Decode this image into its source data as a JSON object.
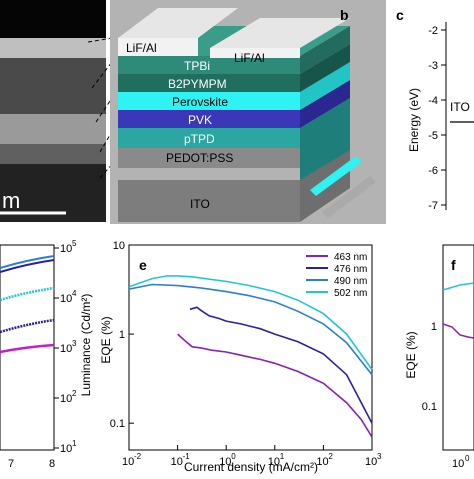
{
  "panel_a": {
    "scale_label": "m"
  },
  "panel_b": {
    "label": "b",
    "layers": [
      "LiF/Al",
      "LiF/Al",
      "TPBi",
      "B2PYMPM",
      "Perovskite",
      "PVK",
      "pTPD",
      "PEDOT:PSS",
      "ITO"
    ],
    "colors": {
      "tpbi": "#2e8b7a",
      "b2pympm": "#1f6e5e",
      "perovskite": "#2ff3f3",
      "pvk": "#3a37b8",
      "ptpd": "#2aa7a0",
      "pedot": "#8a8a8a",
      "ito": "#7d7d7d"
    }
  },
  "panel_c": {
    "label": "c",
    "ylabel": "Energy (eV)",
    "ticks": [
      "-2",
      "-3",
      "-4",
      "-5",
      "-6",
      "-7"
    ],
    "ito_label": "ITO"
  },
  "panel_d": {
    "ylabel": "Luminance (Cd/m²)",
    "yticks": [
      "10",
      "10",
      "10",
      "10",
      "10"
    ],
    "ytick_exps": [
      "5",
      "4",
      "3",
      "2",
      "1"
    ],
    "xticks": [
      "7",
      "8"
    ]
  },
  "panel_f": {
    "label": "f",
    "ylabel": "EQE (%)",
    "yticks": [
      "1",
      "0.1"
    ],
    "xtick_base": "10",
    "xtick_exp": "0"
  },
  "chart_data": {
    "type": "line",
    "label": "e",
    "xlabel": "Current density (mA/cm²)",
    "ylabel": "EQE (%)",
    "xscale": "log",
    "yscale": "log",
    "xlim": [
      0.01,
      1000
    ],
    "ylim": [
      0.05,
      10
    ],
    "xticks": [
      {
        "base": "10",
        "exp": "-2",
        "v": 0.01
      },
      {
        "base": "10",
        "exp": "-1",
        "v": 0.1
      },
      {
        "base": "10",
        "exp": "0",
        "v": 1
      },
      {
        "base": "10",
        "exp": "1",
        "v": 10
      },
      {
        "base": "10",
        "exp": "2",
        "v": 100
      },
      {
        "base": "10",
        "exp": "3",
        "v": 1000
      }
    ],
    "yticks": [
      {
        "label": "10",
        "v": 10
      },
      {
        "label": "1",
        "v": 1
      },
      {
        "label": "0.1",
        "v": 0.1
      }
    ],
    "legend_position": "top-right",
    "series": [
      {
        "name": "463 nm",
        "color": "#8a1fb5",
        "x": [
          0.1,
          0.15,
          0.2,
          0.3,
          0.5,
          1,
          2,
          5,
          10,
          30,
          100,
          300,
          600,
          1000
        ],
        "y": [
          1.0,
          0.82,
          0.72,
          0.7,
          0.66,
          0.63,
          0.58,
          0.52,
          0.47,
          0.38,
          0.28,
          0.17,
          0.11,
          0.07
        ]
      },
      {
        "name": "476 nm",
        "color": "#2a1fa8",
        "x": [
          0.18,
          0.25,
          0.3,
          0.45,
          0.7,
          1,
          2,
          5,
          10,
          30,
          100,
          300,
          1000
        ],
        "y": [
          1.9,
          2.0,
          1.85,
          1.6,
          1.5,
          1.4,
          1.3,
          1.15,
          1.0,
          0.82,
          0.6,
          0.35,
          0.1
        ]
      },
      {
        "name": "490 nm",
        "color": "#2a7fd4",
        "x": [
          0.01,
          0.03,
          0.1,
          0.3,
          1,
          3,
          10,
          30,
          100,
          300,
          1000
        ],
        "y": [
          3.2,
          3.6,
          3.5,
          3.3,
          3.0,
          2.7,
          2.3,
          1.8,
          1.3,
          0.8,
          0.35
        ]
      },
      {
        "name": "502 nm",
        "color": "#22c7d6",
        "x": [
          0.01,
          0.03,
          0.06,
          0.1,
          0.2,
          0.5,
          1,
          3,
          10,
          30,
          100,
          300,
          1000
        ],
        "y": [
          3.4,
          4.2,
          4.5,
          4.5,
          4.4,
          4.1,
          3.9,
          3.5,
          3.0,
          2.4,
          1.7,
          1.0,
          0.4
        ]
      }
    ]
  }
}
